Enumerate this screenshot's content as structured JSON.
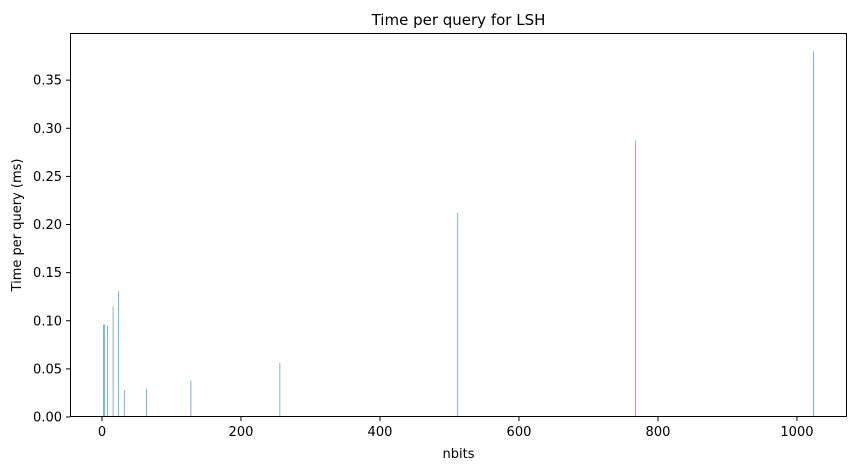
{
  "chart_data": {
    "type": "bar",
    "title": "Time per query for LSH",
    "xlabel": "nbits",
    "ylabel": "Time per query (ms)",
    "series": [
      {
        "x": [
          2,
          4,
          8,
          16,
          24,
          32,
          64,
          128,
          256,
          512,
          768,
          1024
        ],
        "values": [
          0.096,
          0.096,
          0.095,
          0.115,
          0.131,
          0.028,
          0.029,
          0.038,
          0.056,
          0.212,
          0.287,
          0.38
        ]
      }
    ],
    "xlim": [
      -46,
      1072
    ],
    "ylim": [
      0,
      0.399
    ],
    "xticks": [
      0,
      200,
      400,
      600,
      800,
      1000
    ],
    "yticks": [
      0.0,
      0.05,
      0.1,
      0.15,
      0.2,
      0.25,
      0.3,
      0.35
    ],
    "ytick_labels": [
      "0.00",
      "0.05",
      "0.10",
      "0.15",
      "0.20",
      "0.25",
      "0.30",
      "0.35"
    ],
    "bar_color": "#1f77b4",
    "grid": false,
    "legend": "none"
  }
}
